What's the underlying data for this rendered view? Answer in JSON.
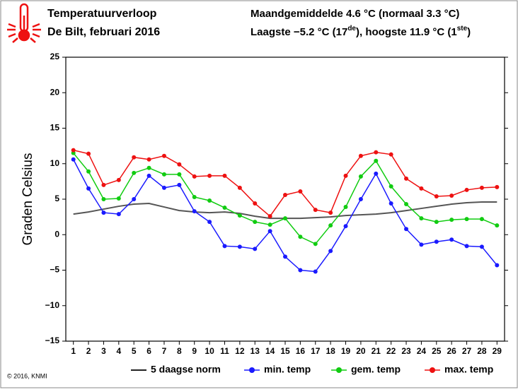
{
  "chart_data": {
    "type": "line",
    "title": "Temperatuurverloop",
    "subtitle": "De Bilt, februari 2016",
    "annotations": [
      [
        "Maandgemiddelde 4.6 °C (normaal 3.3 °C)"
      ],
      [
        "Laagste −5.2 °C (17",
        "de",
        "), hoogste 11.9 °C (1",
        "ste",
        ")"
      ]
    ],
    "ylabel": "Graden Celsius",
    "credit": "© 2016, KNMI",
    "x": [
      1,
      2,
      3,
      4,
      5,
      6,
      7,
      8,
      9,
      10,
      11,
      12,
      13,
      14,
      15,
      16,
      17,
      18,
      19,
      20,
      21,
      22,
      23,
      24,
      25,
      26,
      27,
      28,
      29
    ],
    "xlim": [
      0.5,
      29.5
    ],
    "xticks": [
      1,
      2,
      3,
      4,
      5,
      6,
      7,
      8,
      9,
      10,
      11,
      12,
      13,
      14,
      15,
      16,
      17,
      18,
      19,
      20,
      21,
      22,
      23,
      24,
      25,
      26,
      27,
      28,
      29
    ],
    "ylim": [
      -15,
      25
    ],
    "yticks": [
      {
        "value": -15,
        "label": "−15"
      },
      {
        "value": -10,
        "label": "−10"
      },
      {
        "value": -5,
        "label": "−5"
      },
      0,
      5,
      10,
      15,
      20,
      25
    ],
    "series": [
      {
        "name": "5 daagse norm",
        "color": "#555555",
        "markers": false,
        "values": [
          2.9,
          3.2,
          3.6,
          4.0,
          4.3,
          4.4,
          3.9,
          3.4,
          3.2,
          3.1,
          3.2,
          3.0,
          2.6,
          2.3,
          2.3,
          2.3,
          2.4,
          2.5,
          2.7,
          2.8,
          2.9,
          3.1,
          3.4,
          3.7,
          4.0,
          4.3,
          4.5,
          4.6,
          4.6
        ]
      },
      {
        "name": "min. temp",
        "color": "#1a1aff",
        "markers": true,
        "values": [
          10.6,
          6.5,
          3.1,
          2.9,
          5.0,
          8.3,
          6.6,
          7.0,
          3.3,
          1.8,
          -1.6,
          -1.7,
          -2.0,
          0.5,
          -3.1,
          -5.0,
          -5.2,
          -2.3,
          1.2,
          5.0,
          8.6,
          4.4,
          0.8,
          -1.4,
          -1.0,
          -0.7,
          -1.6,
          -1.7,
          -4.3
        ]
      },
      {
        "name": "gem. temp",
        "color": "#11cc11",
        "markers": true,
        "values": [
          11.5,
          8.9,
          5.0,
          5.1,
          8.7,
          9.4,
          8.5,
          8.5,
          5.3,
          4.8,
          3.8,
          2.7,
          1.8,
          1.4,
          2.3,
          -0.3,
          -1.3,
          1.3,
          3.9,
          8.2,
          10.4,
          6.8,
          4.3,
          2.3,
          1.8,
          2.1,
          2.2,
          2.2,
          1.3
        ]
      },
      {
        "name": "max. temp",
        "color": "#ee1111",
        "markers": true,
        "values": [
          11.9,
          11.4,
          7.0,
          7.7,
          10.9,
          10.6,
          11.1,
          9.9,
          8.2,
          8.3,
          8.3,
          6.6,
          4.4,
          2.6,
          5.6,
          6.1,
          3.5,
          3.1,
          8.3,
          11.1,
          11.6,
          11.3,
          7.9,
          6.5,
          5.4,
          5.5,
          6.3,
          6.6,
          6.7
        ]
      }
    ]
  }
}
